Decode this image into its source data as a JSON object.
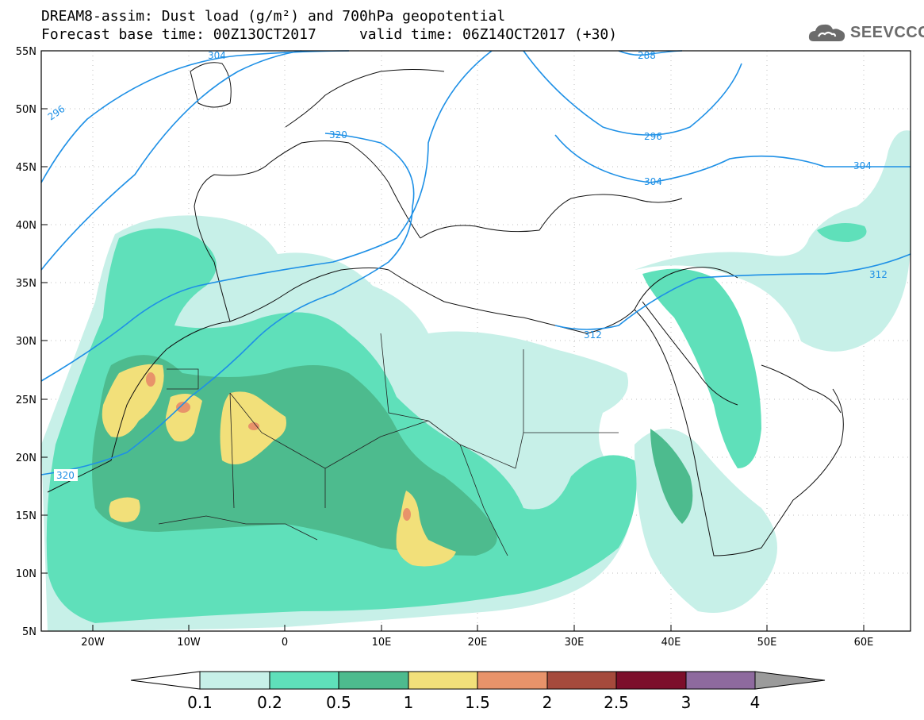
{
  "header": {
    "title": "DREAM8-assim: Dust load (g/m²) and 700hPa geopotential",
    "forecast_base": "Forecast base time: 00Z13OCT2017",
    "valid_time": "valid time: 06Z14OCT2017 (+30)"
  },
  "logo": {
    "text": "SEEVCCC",
    "icon": "cloud-icon"
  },
  "map": {
    "lat_labels": [
      "55N",
      "50N",
      "45N",
      "40N",
      "35N",
      "30N",
      "25N",
      "20N",
      "15N",
      "10N",
      "5N"
    ],
    "lon_labels": [
      "20W",
      "10W",
      "0",
      "10E",
      "20E",
      "30E",
      "40E",
      "50E",
      "60E"
    ],
    "contour_labels": [
      "296",
      "304",
      "288",
      "320",
      "296",
      "304",
      "304",
      "312",
      "312",
      "320"
    ]
  },
  "colorbar": {
    "ticks": [
      "0.1",
      "0.2",
      "0.5",
      "1",
      "1.5",
      "2",
      "2.5",
      "3",
      "4"
    ],
    "colors": [
      "#c7f0e8",
      "#5fe0ba",
      "#4dbb8e",
      "#f2e07a",
      "#e8936a",
      "#a54a3c",
      "#7c0f2b",
      "#8e6a9e"
    ],
    "under_color": "#ffffff",
    "over_color": "#9b9b9b"
  }
}
